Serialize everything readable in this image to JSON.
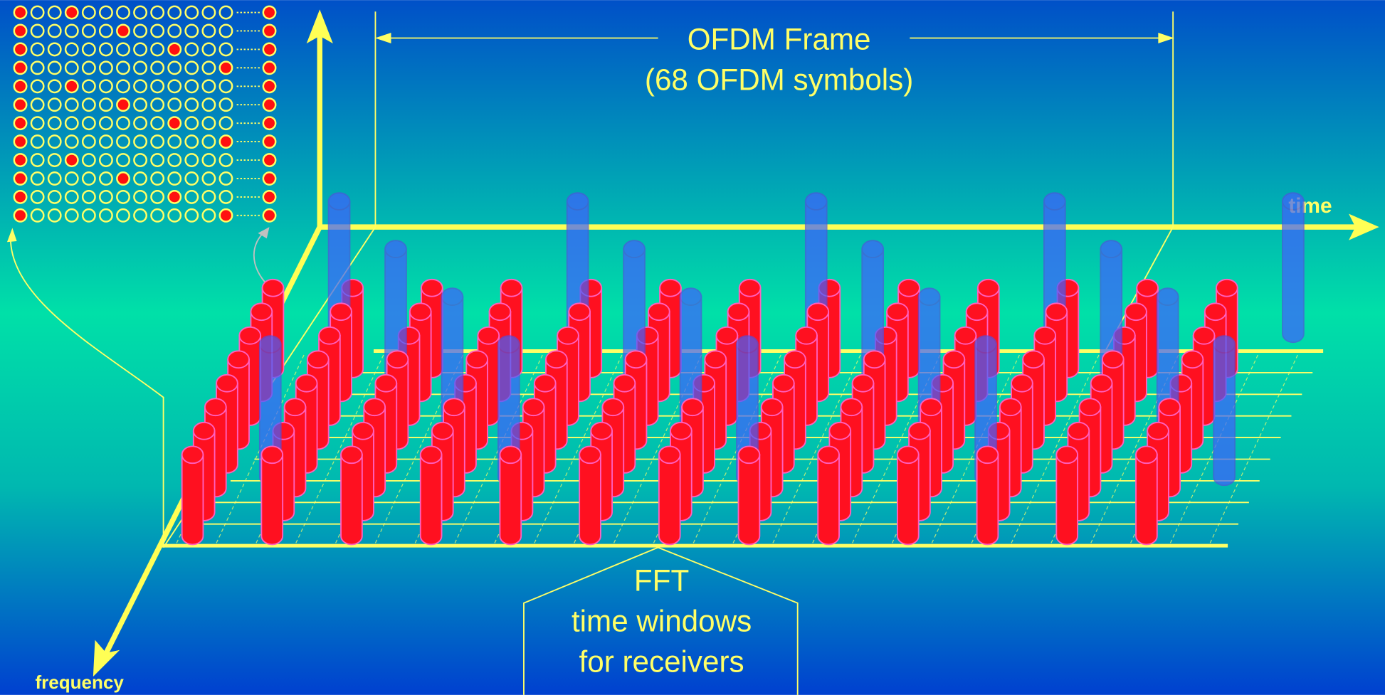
{
  "frame": {
    "title": "OFDM Frame",
    "subtitle": "(68 OFDM symbols)"
  },
  "axes": {
    "time": "time",
    "frequency": "frequency"
  },
  "fft": {
    "lines": [
      "FFT",
      "time windows",
      "for receivers"
    ]
  }
}
